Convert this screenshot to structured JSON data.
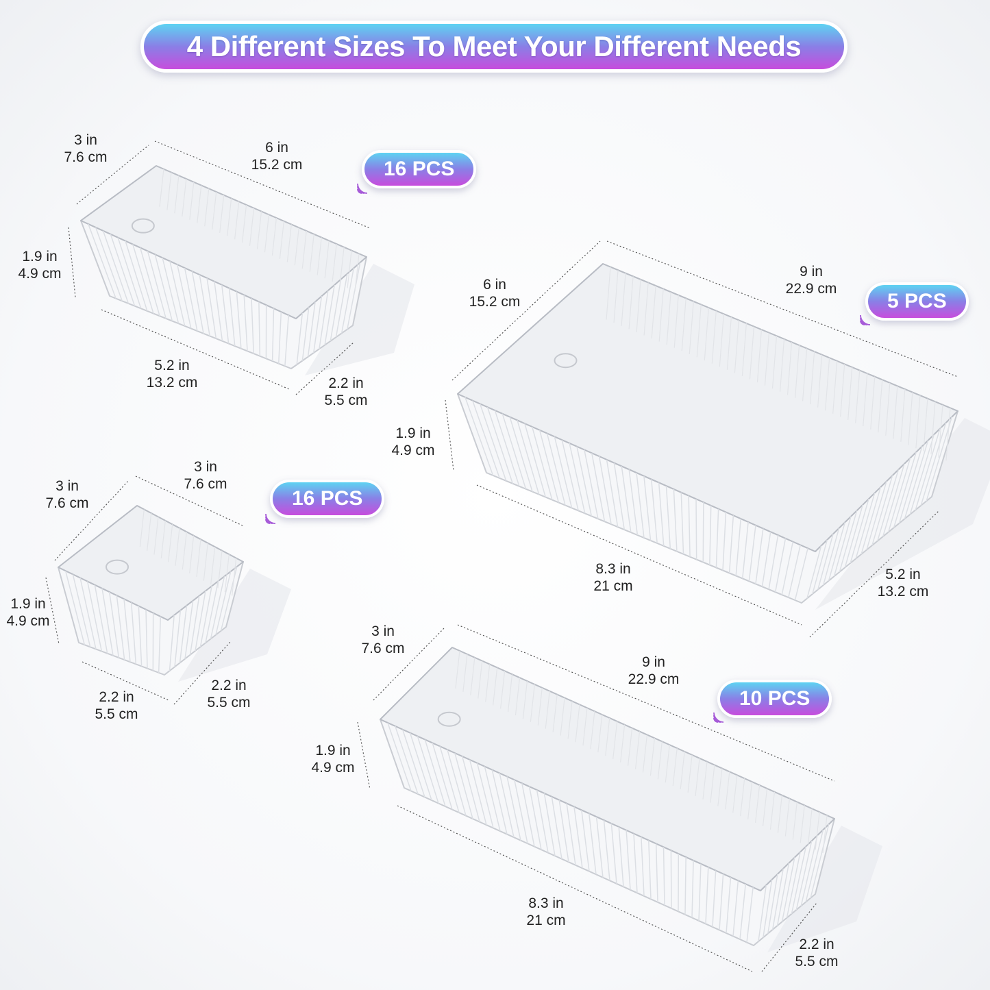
{
  "banner": {
    "title": "4 Different Sizes To Meet Your Different Needs"
  },
  "colors": {
    "gradient_top": "#5ed3f2",
    "gradient_bottom": "#c74ddd",
    "text": "#222222"
  },
  "trays": [
    {
      "pcs": "16 PCS",
      "dims": [
        {
          "in": "3 in",
          "cm": "7.6 cm"
        },
        {
          "in": "6 in",
          "cm": "15.2 cm"
        },
        {
          "in": "1.9 in",
          "cm": "4.9 cm"
        },
        {
          "in": "5.2 in",
          "cm": "13.2 cm"
        },
        {
          "in": "2.2 in",
          "cm": "5.5 cm"
        }
      ]
    },
    {
      "pcs": "5 PCS",
      "dims": [
        {
          "in": "6 in",
          "cm": "15.2 cm"
        },
        {
          "in": "9 in",
          "cm": "22.9 cm"
        },
        {
          "in": "1.9 in",
          "cm": "4.9 cm"
        },
        {
          "in": "8.3 in",
          "cm": "21 cm"
        },
        {
          "in": "5.2 in",
          "cm": "13.2 cm"
        }
      ]
    },
    {
      "pcs": "16 PCS",
      "dims": [
        {
          "in": "3 in",
          "cm": "7.6 cm"
        },
        {
          "in": "3 in",
          "cm": "7.6 cm"
        },
        {
          "in": "1.9 in",
          "cm": "4.9 cm"
        },
        {
          "in": "2.2 in",
          "cm": "5.5 cm"
        },
        {
          "in": "2.2 in",
          "cm": "5.5 cm"
        }
      ]
    },
    {
      "pcs": "10 PCS",
      "dims": [
        {
          "in": "3 in",
          "cm": "7.6 cm"
        },
        {
          "in": "9 in",
          "cm": "22.9 cm"
        },
        {
          "in": "1.9 in",
          "cm": "4.9 cm"
        },
        {
          "in": "8.3 in",
          "cm": "21 cm"
        },
        {
          "in": "2.2 in",
          "cm": "5.5 cm"
        }
      ]
    }
  ]
}
